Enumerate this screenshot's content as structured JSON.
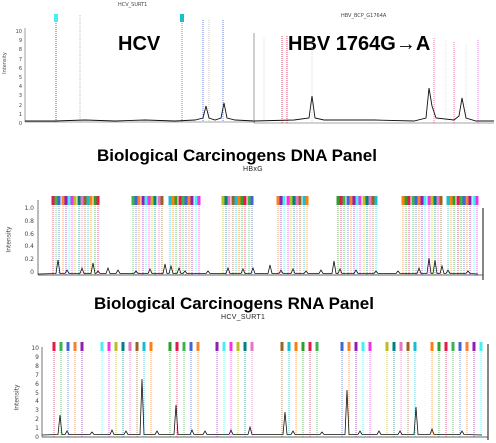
{
  "hcv_panel": {
    "small_title": "HCV_SURT1",
    "label": "HCV",
    "axis_label": "Intensity",
    "yticks": [
      "10",
      "9",
      "8",
      "7",
      "6",
      "5",
      "4",
      "3",
      "2",
      "1",
      "0"
    ]
  },
  "hbv_panel": {
    "small_title": "HBV_BCP_G1764A",
    "label": "HBV 1764G→A"
  },
  "dna_panel": {
    "heading": "Biological Carcinogens DNA Panel",
    "trace_title": "HBxG",
    "axis_label": "Intensity",
    "yticks": [
      "1.0",
      "0.8",
      "0.6",
      "0.4",
      "0.2",
      "0"
    ]
  },
  "rna_panel": {
    "heading": "Biological Carcinogens RNA Panel",
    "trace_title": "HCV_SURT1",
    "axis_label": "Intensity",
    "yticks": [
      "10",
      "9",
      "8",
      "7",
      "6",
      "5",
      "4",
      "3",
      "2",
      "1",
      "0"
    ]
  },
  "colors": {
    "trace": "#111111",
    "marker_palette": [
      "#e6194b",
      "#3cb44b",
      "#4363d8",
      "#f58231",
      "#911eb4",
      "#46f0f0",
      "#f032e6",
      "#bcbd22",
      "#008080",
      "#e377c2",
      "#9a6324",
      "#17becf",
      "#ff7f0e",
      "#2ca02c"
    ]
  }
}
